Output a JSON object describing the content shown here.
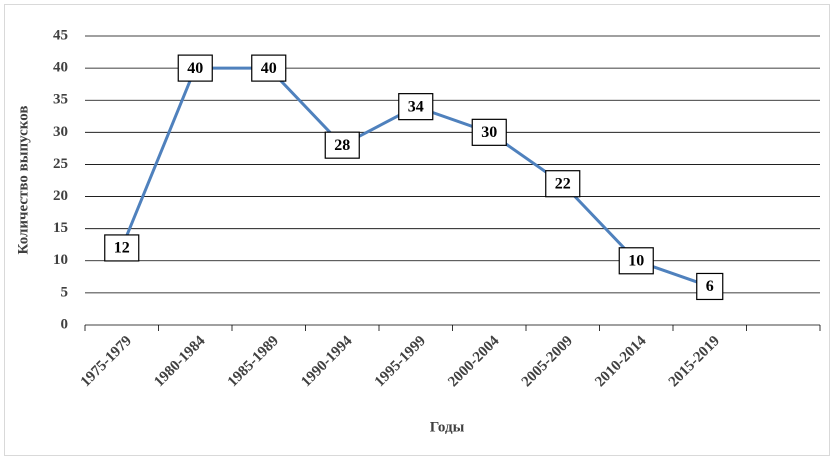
{
  "chart_data": {
    "type": "line",
    "ylabel": "Количество выпусков",
    "xlabel": "Годы",
    "categories": [
      "1975-1979",
      "1980-1984",
      "1985-1989",
      "1990-1994",
      "1995-1999",
      "2000-2004",
      "2005-2009",
      "2010-2014",
      "2015-2019",
      null
    ],
    "values": [
      12,
      40,
      40,
      28,
      34,
      30,
      22,
      10,
      6,
      null
    ],
    "color": "#4f81bd",
    "ylim": [
      0,
      45
    ],
    "yticks": [
      0,
      5,
      10,
      15,
      20,
      25,
      30,
      35,
      40,
      45
    ],
    "grid": true
  }
}
